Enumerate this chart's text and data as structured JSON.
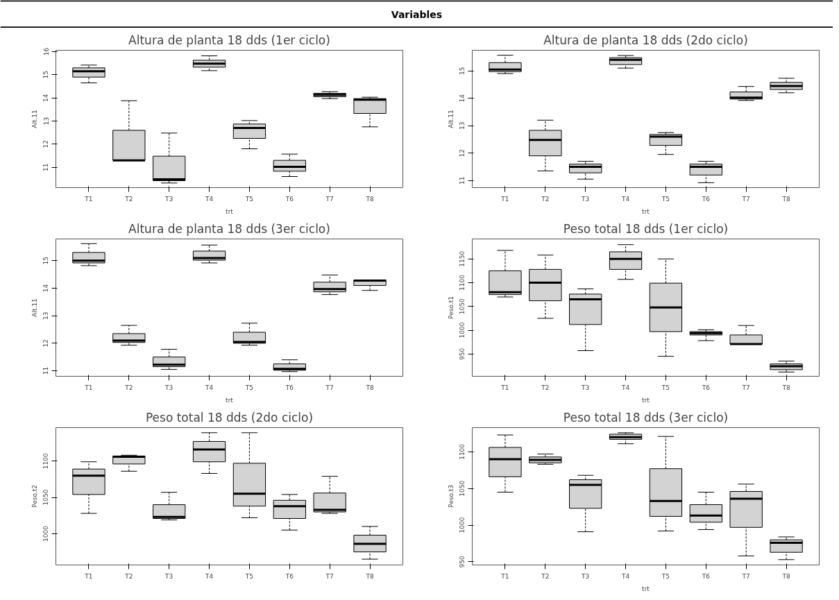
{
  "chart_data": [
    {
      "type": "other",
      "title": "Variables"
    },
    {
      "type": "box",
      "title": "Altura de planta 18 dds (1er ciclo)",
      "xlabel": "trt",
      "ylabel": "Alt.11",
      "categories": [
        "T1",
        "T2",
        "T3",
        "T4",
        "T5",
        "T6",
        "T7",
        "T8"
      ],
      "ylim": [
        10.12,
        16.06
      ],
      "yticks": [
        11,
        12,
        13,
        14,
        15,
        16
      ],
      "grid": false,
      "boxes": [
        {
          "low": 14.65,
          "q1": 14.9,
          "median": 15.15,
          "q3": 15.3,
          "high": 15.42
        },
        {
          "low": 11.3,
          "q1": 11.3,
          "median": 11.3,
          "q3": 12.6,
          "high": 13.88
        },
        {
          "low": 10.32,
          "q1": 10.42,
          "median": 10.48,
          "q3": 11.48,
          "high": 12.48
        },
        {
          "low": 15.18,
          "q1": 15.33,
          "median": 15.48,
          "q3": 15.63,
          "high": 15.82
        },
        {
          "low": 11.8,
          "q1": 12.25,
          "median": 12.7,
          "q3": 12.87,
          "high": 13.02
        },
        {
          "low": 10.6,
          "q1": 10.83,
          "median": 11.02,
          "q3": 11.3,
          "high": 11.57
        },
        {
          "low": 13.97,
          "q1": 14.05,
          "median": 14.13,
          "q3": 14.2,
          "high": 14.27
        },
        {
          "low": 12.75,
          "q1": 13.33,
          "median": 13.92,
          "q3": 13.97,
          "high": 14.03
        }
      ]
    },
    {
      "type": "box",
      "title": "Altura de planta 18 dds (2do ciclo)",
      "xlabel": "trt",
      "ylabel": "Alt.11",
      "categories": [
        "T1",
        "T2",
        "T3",
        "T4",
        "T5",
        "T6",
        "T7",
        "T8"
      ],
      "ylim": [
        10.74,
        15.75
      ],
      "yticks": [
        11,
        12,
        13,
        14,
        15
      ],
      "grid": false,
      "boxes": [
        {
          "low": 14.9,
          "q1": 14.97,
          "median": 15.05,
          "q3": 15.3,
          "high": 15.57
        },
        {
          "low": 11.35,
          "q1": 11.9,
          "median": 12.48,
          "q3": 12.83,
          "high": 13.2
        },
        {
          "low": 11.05,
          "q1": 11.28,
          "median": 11.5,
          "q3": 11.6,
          "high": 11.7
        },
        {
          "low": 15.1,
          "q1": 15.23,
          "median": 15.4,
          "q3": 15.48,
          "high": 15.56
        },
        {
          "low": 11.95,
          "q1": 12.28,
          "median": 12.6,
          "q3": 12.68,
          "high": 12.75
        },
        {
          "low": 10.92,
          "q1": 11.2,
          "median": 11.5,
          "q3": 11.6,
          "high": 11.7
        },
        {
          "low": 13.92,
          "q1": 13.97,
          "median": 14.02,
          "q3": 14.23,
          "high": 14.43
        },
        {
          "low": 14.2,
          "q1": 14.32,
          "median": 14.45,
          "q3": 14.58,
          "high": 14.73
        }
      ]
    },
    {
      "type": "box",
      "title": "Altura de planta 18 dds (3er ciclo)",
      "xlabel": "trt",
      "ylabel": "Alt.11",
      "categories": [
        "T1",
        "T2",
        "T3",
        "T4",
        "T5",
        "T6",
        "T7",
        "T8"
      ],
      "ylim": [
        10.8,
        15.79
      ],
      "yticks": [
        11,
        12,
        13,
        14,
        15
      ],
      "grid": false,
      "boxes": [
        {
          "low": 14.82,
          "q1": 14.92,
          "median": 15.0,
          "q3": 15.3,
          "high": 15.62
        },
        {
          "low": 11.93,
          "q1": 12.03,
          "median": 12.1,
          "q3": 12.35,
          "high": 12.65
        },
        {
          "low": 11.05,
          "q1": 11.15,
          "median": 11.22,
          "q3": 11.5,
          "high": 11.78
        },
        {
          "low": 14.92,
          "q1": 15.02,
          "median": 15.1,
          "q3": 15.35,
          "high": 15.57
        },
        {
          "low": 11.93,
          "q1": 12.0,
          "median": 12.05,
          "q3": 12.4,
          "high": 12.73
        },
        {
          "low": 10.97,
          "q1": 11.02,
          "median": 11.07,
          "q3": 11.25,
          "high": 11.4
        },
        {
          "low": 13.77,
          "q1": 13.87,
          "median": 13.97,
          "q3": 14.22,
          "high": 14.48
        },
        {
          "low": 13.92,
          "q1": 14.1,
          "median": 14.28,
          "q3": 14.3,
          "high": 14.3
        }
      ]
    },
    {
      "type": "box",
      "title": "Peso total 18 dds (1er ciclo)",
      "xlabel": "trt",
      "ylabel": "Peso.t1",
      "categories": [
        "T1",
        "T2",
        "T3",
        "T4",
        "T5",
        "T6",
        "T7",
        "T8"
      ],
      "ylim": [
        903,
        1192
      ],
      "yticks": [
        950,
        1000,
        1050,
        1100,
        1150
      ],
      "grid": false,
      "boxes": [
        {
          "low": 1070,
          "q1": 1075,
          "median": 1080,
          "q3": 1125,
          "high": 1168
        },
        {
          "low": 1025,
          "q1": 1062,
          "median": 1100,
          "q3": 1128,
          "high": 1158
        },
        {
          "low": 957,
          "q1": 1012,
          "median": 1065,
          "q3": 1076,
          "high": 1087
        },
        {
          "low": 1107,
          "q1": 1128,
          "median": 1150,
          "q3": 1165,
          "high": 1180
        },
        {
          "low": 945,
          "q1": 997,
          "median": 1048,
          "q3": 1099,
          "high": 1150
        },
        {
          "low": 978,
          "q1": 990,
          "median": 994,
          "q3": 997,
          "high": 1001
        },
        {
          "low": 971,
          "q1": 971,
          "median": 971,
          "q3": 990,
          "high": 1010
        },
        {
          "low": 912,
          "q1": 917,
          "median": 924,
          "q3": 929,
          "high": 935
        }
      ]
    },
    {
      "type": "box",
      "title": "Peso total 18 dds (2do ciclo)",
      "ylabel": "Peso.t2",
      "categories": [
        "T1",
        "T2",
        "T3",
        "T4",
        "T5",
        "T6",
        "T7",
        "T8"
      ],
      "ylim": [
        957,
        1146
      ],
      "yticks": [
        1000,
        1050,
        1100
      ],
      "grid": false,
      "boxes": [
        {
          "low": 1028,
          "q1": 1054,
          "median": 1080,
          "q3": 1089,
          "high": 1099
        },
        {
          "low": 1086,
          "q1": 1096,
          "median": 1106,
          "q3": 1107,
          "high": 1108
        },
        {
          "low": 1019,
          "q1": 1021,
          "median": 1023,
          "q3": 1040,
          "high": 1057
        },
        {
          "low": 1083,
          "q1": 1099,
          "median": 1116,
          "q3": 1127,
          "high": 1139
        },
        {
          "low": 1022,
          "q1": 1038,
          "median": 1055,
          "q3": 1097,
          "high": 1139
        },
        {
          "low": 1005,
          "q1": 1021,
          "median": 1038,
          "q3": 1046,
          "high": 1054
        },
        {
          "low": 1028,
          "q1": 1030,
          "median": 1033,
          "q3": 1056,
          "high": 1079
        },
        {
          "low": 965,
          "q1": 975,
          "median": 986,
          "q3": 998,
          "high": 1010
        }
      ]
    },
    {
      "type": "box",
      "title": "Peso total 18 dds (3er ciclo)",
      "xlabel": "trt",
      "ylabel": "Peso.t3",
      "categories": [
        "T1",
        "T2",
        "T3",
        "T4",
        "T5",
        "T6",
        "T7",
        "T8"
      ],
      "ylim": [
        945.7,
        1133
      ],
      "yticks": [
        950,
        1000,
        1050,
        1100
      ],
      "grid": false,
      "boxes": [
        {
          "low": 1045,
          "q1": 1066,
          "median": 1090,
          "q3": 1106,
          "high": 1123
        },
        {
          "low": 1083,
          "q1": 1085,
          "median": 1089,
          "q3": 1093,
          "high": 1097
        },
        {
          "low": 991,
          "q1": 1023,
          "median": 1055,
          "q3": 1062,
          "high": 1068
        },
        {
          "low": 1111,
          "q1": 1117,
          "median": 1120,
          "q3": 1124,
          "high": 1126
        },
        {
          "low": 992,
          "q1": 1012,
          "median": 1033,
          "q3": 1077,
          "high": 1121
        },
        {
          "low": 994,
          "q1": 1004,
          "median": 1013,
          "q3": 1028,
          "high": 1045
        },
        {
          "low": 958,
          "q1": 997,
          "median": 1036,
          "q3": 1046,
          "high": 1056
        },
        {
          "low": 953,
          "q1": 963,
          "median": 976,
          "q3": 980,
          "high": 984
        }
      ]
    }
  ]
}
